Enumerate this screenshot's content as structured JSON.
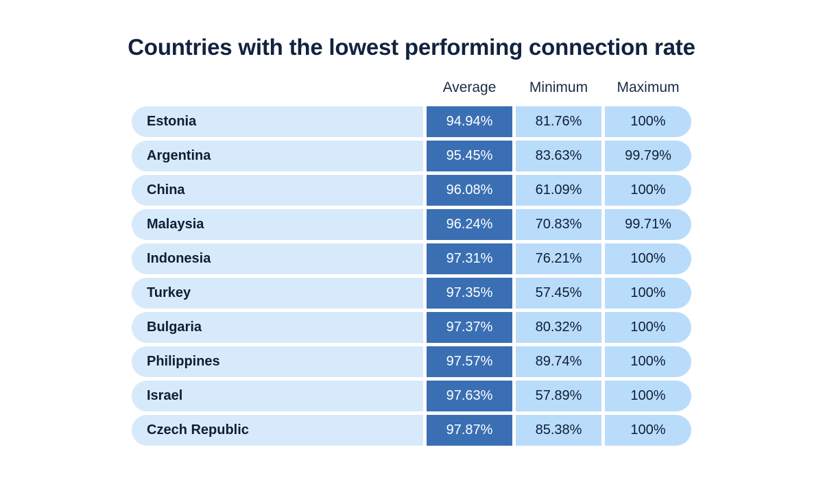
{
  "chart_data": {
    "type": "table",
    "title": "Countries with the lowest performing connection rate",
    "columns": [
      "Average",
      "Minimum",
      "Maximum"
    ],
    "rows": [
      {
        "country": "Estonia",
        "average": "94.94%",
        "minimum": "81.76%",
        "maximum": "100%"
      },
      {
        "country": "Argentina",
        "average": "95.45%",
        "minimum": "83.63%",
        "maximum": "99.79%"
      },
      {
        "country": "China",
        "average": "96.08%",
        "minimum": "61.09%",
        "maximum": "100%"
      },
      {
        "country": "Malaysia",
        "average": "96.24%",
        "minimum": "70.83%",
        "maximum": "99.71%"
      },
      {
        "country": "Indonesia",
        "average": "97.31%",
        "minimum": "76.21%",
        "maximum": "100%"
      },
      {
        "country": "Turkey",
        "average": "97.35%",
        "minimum": "57.45%",
        "maximum": "100%"
      },
      {
        "country": "Bulgaria",
        "average": "97.37%",
        "minimum": "80.32%",
        "maximum": "100%"
      },
      {
        "country": "Philippines",
        "average": "97.57%",
        "minimum": "89.74%",
        "maximum": "100%"
      },
      {
        "country": "Israel",
        "average": "97.63%",
        "minimum": "57.89%",
        "maximum": "100%"
      },
      {
        "country": "Czech Republic",
        "average": "97.87%",
        "minimum": "85.38%",
        "maximum": "100%"
      }
    ]
  },
  "colors": {
    "country_bg": "#d7eafb",
    "average_bg": "#3a6fb3",
    "minmax_bg": "#b9dcfb",
    "title_text": "#12223f"
  }
}
